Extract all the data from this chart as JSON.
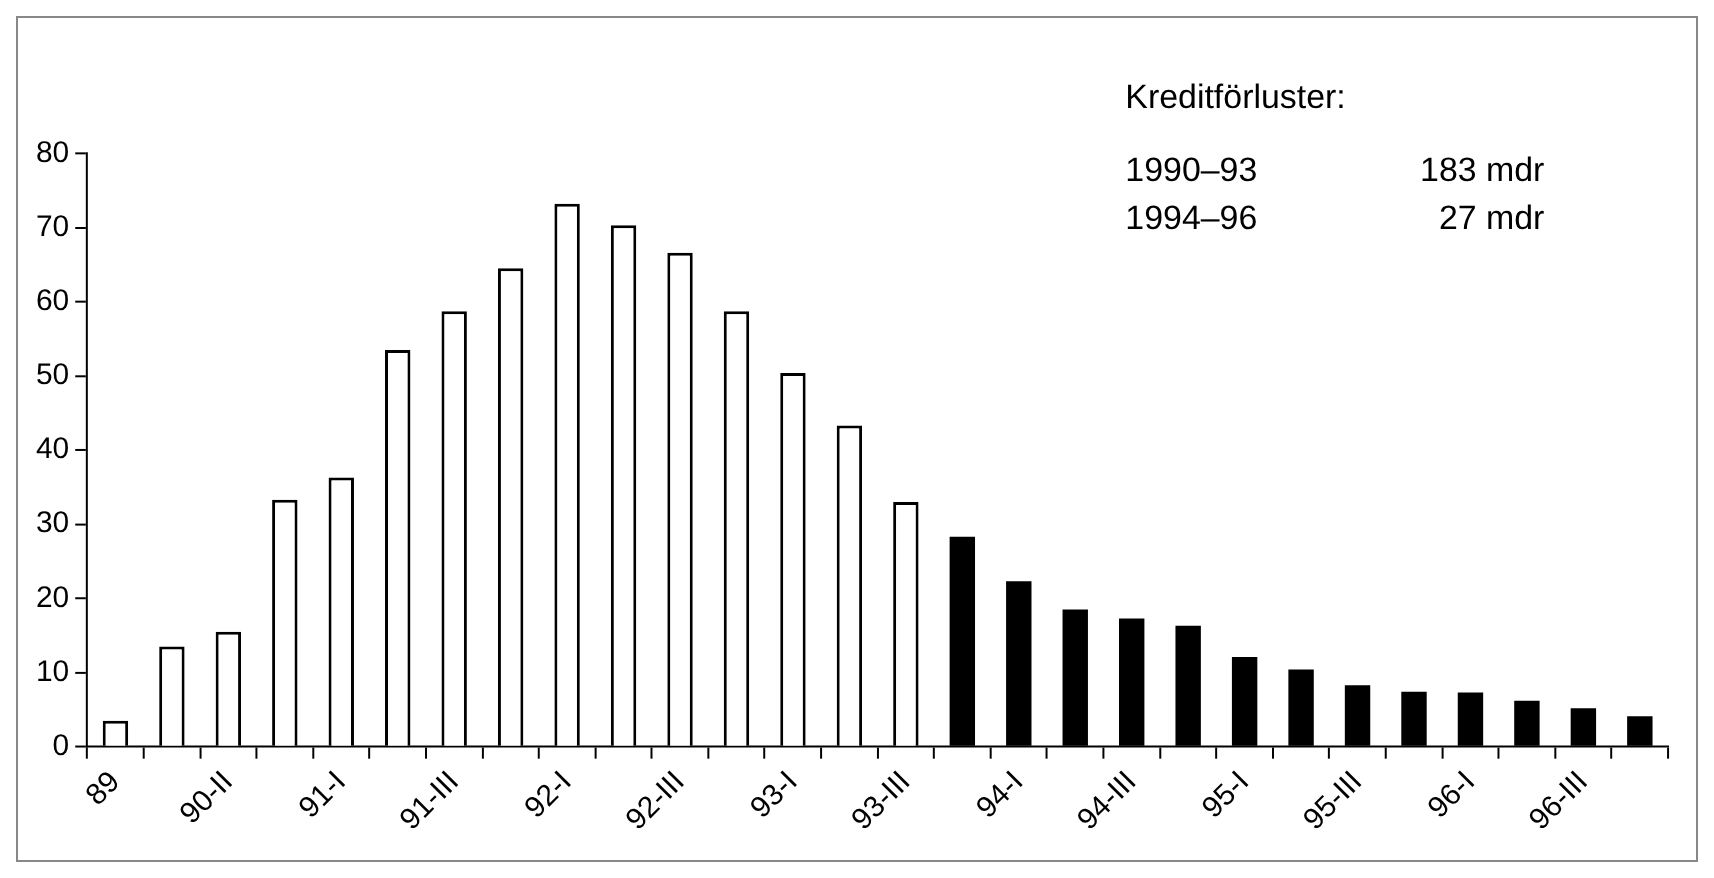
{
  "chart_data": {
    "type": "bar",
    "categories": [
      "89",
      null,
      "90-II",
      null,
      "91-I",
      null,
      "91-III",
      null,
      "92-I",
      null,
      "92-III",
      null,
      "93-I",
      null,
      "93-III",
      null,
      "94-I",
      null,
      "94-III",
      null,
      "95-I",
      null,
      "95-III",
      null,
      "96-I",
      null,
      "96-III",
      null
    ],
    "values": [
      3.5,
      13.5,
      15.5,
      33.3,
      36.3,
      53.5,
      58.7,
      64.5,
      73.2,
      70.3,
      66.6,
      58.7,
      50.4,
      43.3,
      33,
      28.3,
      22.3,
      18.5,
      17.3,
      16.3,
      12.1,
      10.4,
      8.3,
      7.4,
      7.3,
      6.2,
      5.2,
      4.1
    ],
    "colors": [
      "#ffffff",
      "#ffffff",
      "#ffffff",
      "#ffffff",
      "#ffffff",
      "#ffffff",
      "#ffffff",
      "#ffffff",
      "#ffffff",
      "#ffffff",
      "#ffffff",
      "#ffffff",
      "#ffffff",
      "#ffffff",
      "#ffffff",
      "#000000",
      "#000000",
      "#000000",
      "#000000",
      "#000000",
      "#000000",
      "#000000",
      "#000000",
      "#000000",
      "#000000",
      "#000000",
      "#000000",
      "#000000"
    ],
    "ylim": [
      0,
      80
    ],
    "yticks": [
      0,
      10,
      20,
      30,
      40,
      50,
      60,
      70,
      80
    ],
    "grid": false,
    "legend": false,
    "annotations": [
      "Kreditförluster:",
      "1990–93",
      "183 mdr",
      "1994–96",
      "27 mdr"
    ]
  }
}
